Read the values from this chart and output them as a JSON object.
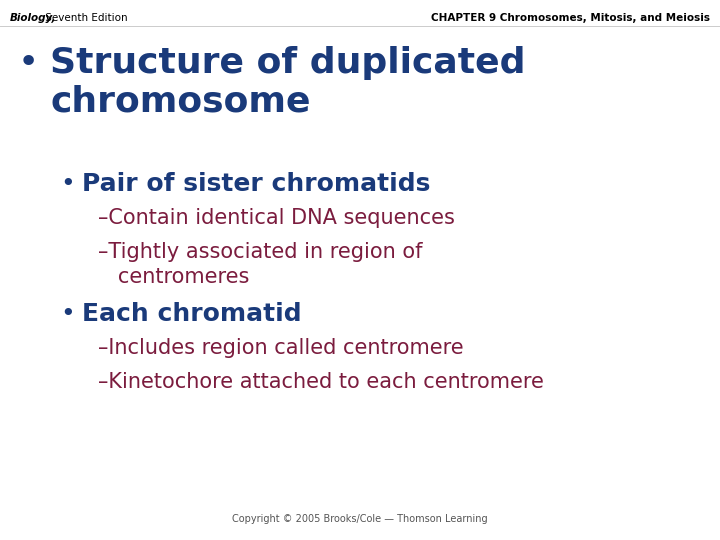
{
  "bg_color": "#ffffff",
  "header_left_italic": "Biology,",
  "header_left_normal": " Seventh Edition",
  "header_right": "CHAPTER 9 Chromosomes, Mitosis, and Meiosis",
  "header_color": "#000000",
  "header_fontsize": 7.5,
  "bullet1_text": "Structure of duplicated\nchromosome",
  "bullet1_color": "#1A3A7A",
  "bullet1_fontsize": 26,
  "bullet2_text": "Pair of sister chromatids",
  "bullet2_color": "#1A3A7A",
  "bullet2_fontsize": 18,
  "sub1_text": "–Contain identical DNA sequences",
  "sub2_text": "–Tightly associated in region of\n   centromeres",
  "sub_color": "#7B1C3E",
  "sub_fontsize": 15,
  "bullet3_text": "Each chromatid",
  "bullet3_color": "#1A3A7A",
  "bullet3_fontsize": 18,
  "sub3_text": "–Includes region called centromere",
  "sub4_text": "–Kinetochore attached to each centromere",
  "footer_text": "Copyright © 2005 Brooks/Cole — Thomson Learning",
  "footer_color": "#555555",
  "footer_fontsize": 7
}
